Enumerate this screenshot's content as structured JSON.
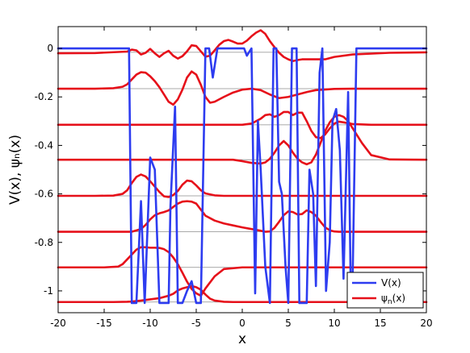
{
  "chart_data": {
    "type": "line",
    "xlabel": "x",
    "ylabel": "V(x), ψₙ(x)",
    "xlim": [
      -20,
      20
    ],
    "ylim": [
      -1.09,
      0.09
    ],
    "xticks": [
      -20,
      -15,
      -10,
      -5,
      0,
      5,
      10,
      15,
      20
    ],
    "xtick_labels": [
      "-20",
      "-15",
      "-10",
      "-5",
      "0",
      "5",
      "10",
      "15",
      "20"
    ],
    "yticks": [
      0,
      -0.2,
      -0.4,
      -0.6,
      -0.8,
      -1
    ],
    "ytick_labels": [
      "0",
      "-0.2",
      "-0.4",
      "-0.6",
      "-0.8",
      "-1"
    ],
    "grid": "horizontal lines at eigenvalue levels",
    "levels": [
      -0.016,
      -0.166,
      -0.315,
      -0.459,
      -0.608,
      -0.756,
      -0.903,
      -1.046
    ],
    "legend": {
      "placement": "bottom-right",
      "entries": [
        {
          "label": "V(x)",
          "color": "#2d3cf0"
        },
        {
          "label": "ψ_n(x)",
          "label_base": "ψ",
          "label_sub": "n",
          "label_tail": "(x)",
          "color": "#e6101a"
        }
      ]
    },
    "series": [
      {
        "name": "V(x)",
        "color": "#2d3cf0",
        "x": [
          -20,
          -12.3,
          -12.0,
          -11.5,
          -11.0,
          -10.6,
          -10.0,
          -9.5,
          -9.0,
          -8.6,
          -8.0,
          -7.8,
          -7.3,
          -7.0,
          -6.5,
          -6.0,
          -5.5,
          -5.0,
          -4.5,
          -4.0,
          -3.6,
          -3.2,
          -2.7,
          -2.3,
          -1.8,
          -1.2,
          -0.5,
          0.2,
          0.5,
          1.0,
          1.4,
          1.7,
          2.0,
          2.5,
          3.0,
          3.4,
          3.7,
          4.0,
          4.3,
          4.7,
          5.0,
          5.4,
          5.6,
          5.9,
          6.2,
          6.5,
          7.0,
          7.3,
          7.7,
          8.0,
          8.4,
          8.7,
          9.1,
          9.5,
          9.8,
          10.2,
          10.6,
          11.0,
          11.5,
          11.8,
          12.0,
          12.4,
          20
        ],
        "y": [
          0,
          0,
          -1.05,
          -1.05,
          -0.63,
          -1.05,
          -0.45,
          -0.5,
          -1.05,
          -1.05,
          -1.05,
          -0.65,
          -0.24,
          -1.05,
          -1.05,
          -1.0,
          -0.96,
          -1.05,
          -1.05,
          0,
          0,
          -0.12,
          0,
          0,
          0,
          0,
          0,
          0,
          -0.03,
          0,
          -1.01,
          -0.3,
          -0.5,
          -0.9,
          -1.05,
          0,
          0,
          -0.55,
          -0.6,
          -0.9,
          -1.05,
          0,
          0,
          0,
          -1.05,
          -1.05,
          -1.05,
          -0.5,
          -0.6,
          -0.98,
          -0.1,
          0,
          -1.0,
          -0.8,
          -0.3,
          -0.25,
          -0.42,
          -0.95,
          -0.18,
          -1.05,
          -0.92,
          0,
          0
        ]
      },
      {
        "name": "ψ_n(x), n=0",
        "color": "#e6101a",
        "x": [
          -20,
          -16,
          -12.5,
          -12.0,
          -11.5,
          -11.0,
          -10.5,
          -10.0,
          -9.5,
          -9.0,
          -8.5,
          -8.0,
          -7.5,
          -7.0,
          -6.5,
          -6.0,
          -5.5,
          -5.0,
          -4.5,
          -4.0,
          -3.5,
          -3.0,
          -2.5,
          -2.0,
          -1.5,
          -1.0,
          -0.5,
          0.0,
          0.5,
          1.0,
          1.5,
          2.0,
          2.5,
          3.0,
          3.5,
          4.0,
          4.5,
          5.0,
          5.5,
          6.0,
          6.5,
          7.0,
          8.0,
          9.0,
          10.0,
          12.0,
          16.0,
          20
        ],
        "y": [
          -0.02,
          -0.019,
          -0.013,
          -0.005,
          -0.008,
          -0.025,
          -0.018,
          -0.002,
          -0.02,
          -0.035,
          -0.02,
          -0.01,
          -0.03,
          -0.042,
          -0.032,
          -0.012,
          0.013,
          0.01,
          -0.012,
          -0.034,
          -0.03,
          -0.008,
          0.015,
          0.03,
          0.035,
          0.028,
          0.02,
          0.02,
          0.032,
          0.05,
          0.065,
          0.075,
          0.06,
          0.03,
          0.005,
          -0.018,
          -0.035,
          -0.045,
          -0.052,
          -0.048,
          -0.045,
          -0.045,
          -0.045,
          -0.045,
          -0.035,
          -0.025,
          -0.018,
          -0.016
        ]
      },
      {
        "name": "ψ_n(x), n=1",
        "color": "#e6101a",
        "x": [
          -20,
          -16,
          -14,
          -13,
          -12.5,
          -12.0,
          -11.5,
          -11.0,
          -10.5,
          -10.0,
          -9.5,
          -9.0,
          -8.5,
          -8.0,
          -7.5,
          -7.0,
          -6.5,
          -6.0,
          -5.5,
          -5.0,
          -4.5,
          -4.0,
          -3.5,
          -3.0,
          -2.0,
          -1.0,
          0.0,
          1.0,
          2.0,
          3.0,
          4.0,
          5.0,
          6.0,
          7.0,
          8.0,
          10.0,
          12.0,
          16.0,
          20
        ],
        "y": [
          -0.166,
          -0.166,
          -0.164,
          -0.158,
          -0.148,
          -0.128,
          -0.108,
          -0.098,
          -0.1,
          -0.115,
          -0.135,
          -0.16,
          -0.19,
          -0.22,
          -0.232,
          -0.21,
          -0.17,
          -0.12,
          -0.095,
          -0.108,
          -0.15,
          -0.2,
          -0.224,
          -0.22,
          -0.2,
          -0.182,
          -0.17,
          -0.166,
          -0.172,
          -0.19,
          -0.205,
          -0.2,
          -0.19,
          -0.18,
          -0.172,
          -0.167,
          -0.166,
          -0.166,
          -0.166
        ]
      },
      {
        "name": "ψ_n(x), n=2",
        "color": "#e6101a",
        "x": [
          -20,
          -10,
          -5,
          -2,
          0,
          1,
          2,
          2.5,
          3.0,
          3.5,
          4.0,
          4.5,
          5.0,
          5.5,
          6.0,
          6.5,
          7.0,
          7.5,
          8.0,
          8.5,
          9.0,
          9.5,
          10.0,
          10.5,
          11.0,
          12,
          14,
          20
        ],
        "y": [
          -0.315,
          -0.315,
          -0.315,
          -0.315,
          -0.315,
          -0.31,
          -0.29,
          -0.275,
          -0.272,
          -0.282,
          -0.275,
          -0.262,
          -0.262,
          -0.275,
          -0.265,
          -0.265,
          -0.3,
          -0.34,
          -0.366,
          -0.37,
          -0.355,
          -0.33,
          -0.31,
          -0.302,
          -0.305,
          -0.312,
          -0.315,
          -0.315
        ]
      },
      {
        "name": "ψ_n(x), n=3",
        "color": "#e6101a",
        "x": [
          -20,
          -10,
          -5,
          -1,
          0,
          1,
          2,
          2.5,
          3.0,
          3.5,
          4.0,
          4.5,
          5.0,
          5.5,
          6.0,
          6.5,
          7.0,
          7.5,
          8.0,
          8.5,
          9.0,
          9.5,
          10.0,
          10.5,
          11.0,
          11.5,
          12.0,
          13,
          14,
          16,
          20
        ],
        "y": [
          -0.459,
          -0.459,
          -0.459,
          -0.459,
          -0.465,
          -0.472,
          -0.475,
          -0.47,
          -0.455,
          -0.43,
          -0.4,
          -0.382,
          -0.4,
          -0.43,
          -0.455,
          -0.47,
          -0.478,
          -0.47,
          -0.438,
          -0.39,
          -0.34,
          -0.305,
          -0.282,
          -0.275,
          -0.282,
          -0.3,
          -0.33,
          -0.39,
          -0.44,
          -0.458,
          -0.459
        ]
      },
      {
        "name": "ψ_n(x), n=4",
        "color": "#e6101a",
        "x": [
          -20,
          -16,
          -14,
          -13,
          -12.5,
          -12.0,
          -11.5,
          -11.0,
          -10.5,
          -10.0,
          -9.5,
          -9.0,
          -8.5,
          -8.0,
          -7.5,
          -7.0,
          -6.5,
          -6.0,
          -5.5,
          -5.0,
          -4.5,
          -4.0,
          -3.0,
          -2.0,
          0,
          2,
          4,
          6,
          10,
          20
        ],
        "y": [
          -0.608,
          -0.608,
          -0.607,
          -0.6,
          -0.585,
          -0.555,
          -0.53,
          -0.52,
          -0.528,
          -0.548,
          -0.57,
          -0.592,
          -0.61,
          -0.613,
          -0.605,
          -0.588,
          -0.562,
          -0.545,
          -0.548,
          -0.565,
          -0.585,
          -0.598,
          -0.606,
          -0.608,
          -0.608,
          -0.608,
          -0.608,
          -0.608,
          -0.608,
          -0.608
        ]
      },
      {
        "name": "ψ_n(x), n=5",
        "color": "#e6101a",
        "x": [
          -20,
          -14,
          -12,
          -11.0,
          -10.5,
          -10.0,
          -9.5,
          -9.0,
          -8.5,
          -8.0,
          -7.5,
          -7.0,
          -6.5,
          -6.0,
          -5.5,
          -5.0,
          -4.5,
          -4.0,
          -3.0,
          -2.0,
          -1.0,
          0,
          1,
          2,
          2.5,
          3.0,
          3.5,
          4.0,
          4.5,
          5.0,
          5.5,
          6.0,
          6.5,
          7.0,
          7.5,
          8.0,
          8.5,
          9.0,
          9.5,
          10.0,
          10.5,
          11,
          12,
          14,
          20
        ],
        "y": [
          -0.756,
          -0.756,
          -0.756,
          -0.745,
          -0.728,
          -0.705,
          -0.688,
          -0.68,
          -0.675,
          -0.668,
          -0.654,
          -0.64,
          -0.632,
          -0.63,
          -0.632,
          -0.64,
          -0.665,
          -0.69,
          -0.71,
          -0.722,
          -0.73,
          -0.738,
          -0.745,
          -0.752,
          -0.756,
          -0.755,
          -0.74,
          -0.715,
          -0.688,
          -0.672,
          -0.675,
          -0.685,
          -0.683,
          -0.668,
          -0.675,
          -0.69,
          -0.715,
          -0.738,
          -0.75,
          -0.755,
          -0.756,
          -0.756,
          -0.756,
          -0.756,
          -0.756
        ]
      },
      {
        "name": "ψ_n(x), n=6",
        "color": "#e6101a",
        "x": [
          -20,
          -15,
          -13.5,
          -13.0,
          -12.5,
          -12.0,
          -11.5,
          -11.0,
          -10.5,
          -10.0,
          -9.5,
          -9.0,
          -8.5,
          -8.0,
          -7.5,
          -7.0,
          -6.5,
          -6.0,
          -5.5,
          -5.0,
          -4.5,
          -4.0,
          -3.0,
          -2.0,
          0,
          5,
          10,
          12,
          14,
          20
        ],
        "y": [
          -0.903,
          -0.903,
          -0.9,
          -0.89,
          -0.87,
          -0.85,
          -0.83,
          -0.82,
          -0.82,
          -0.822,
          -0.822,
          -0.823,
          -0.828,
          -0.84,
          -0.862,
          -0.89,
          -0.925,
          -0.962,
          -0.992,
          -1.01,
          -1.02,
          -0.99,
          -0.94,
          -0.91,
          -0.903,
          -0.903,
          -0.903,
          -0.903,
          -0.903,
          -0.903
        ]
      },
      {
        "name": "ψ_n(x), n=7",
        "color": "#e6101a",
        "x": [
          -20,
          -14,
          -12.5,
          -12.0,
          -11.0,
          -10.0,
          -9.0,
          -8.0,
          -7.5,
          -7.0,
          -6.5,
          -6.0,
          -5.5,
          -5.0,
          -4.5,
          -4.0,
          -3.5,
          -3.0,
          -2.0,
          -1.0,
          0,
          5,
          10,
          15,
          20
        ],
        "y": [
          -1.046,
          -1.046,
          -1.045,
          -1.044,
          -1.04,
          -1.035,
          -1.03,
          -1.02,
          -1.012,
          -0.998,
          -0.99,
          -0.985,
          -0.98,
          -0.985,
          -0.995,
          -1.015,
          -1.032,
          -1.04,
          -1.045,
          -1.046,
          -1.046,
          -1.046,
          -1.046,
          -1.046,
          -1.046
        ]
      }
    ]
  }
}
